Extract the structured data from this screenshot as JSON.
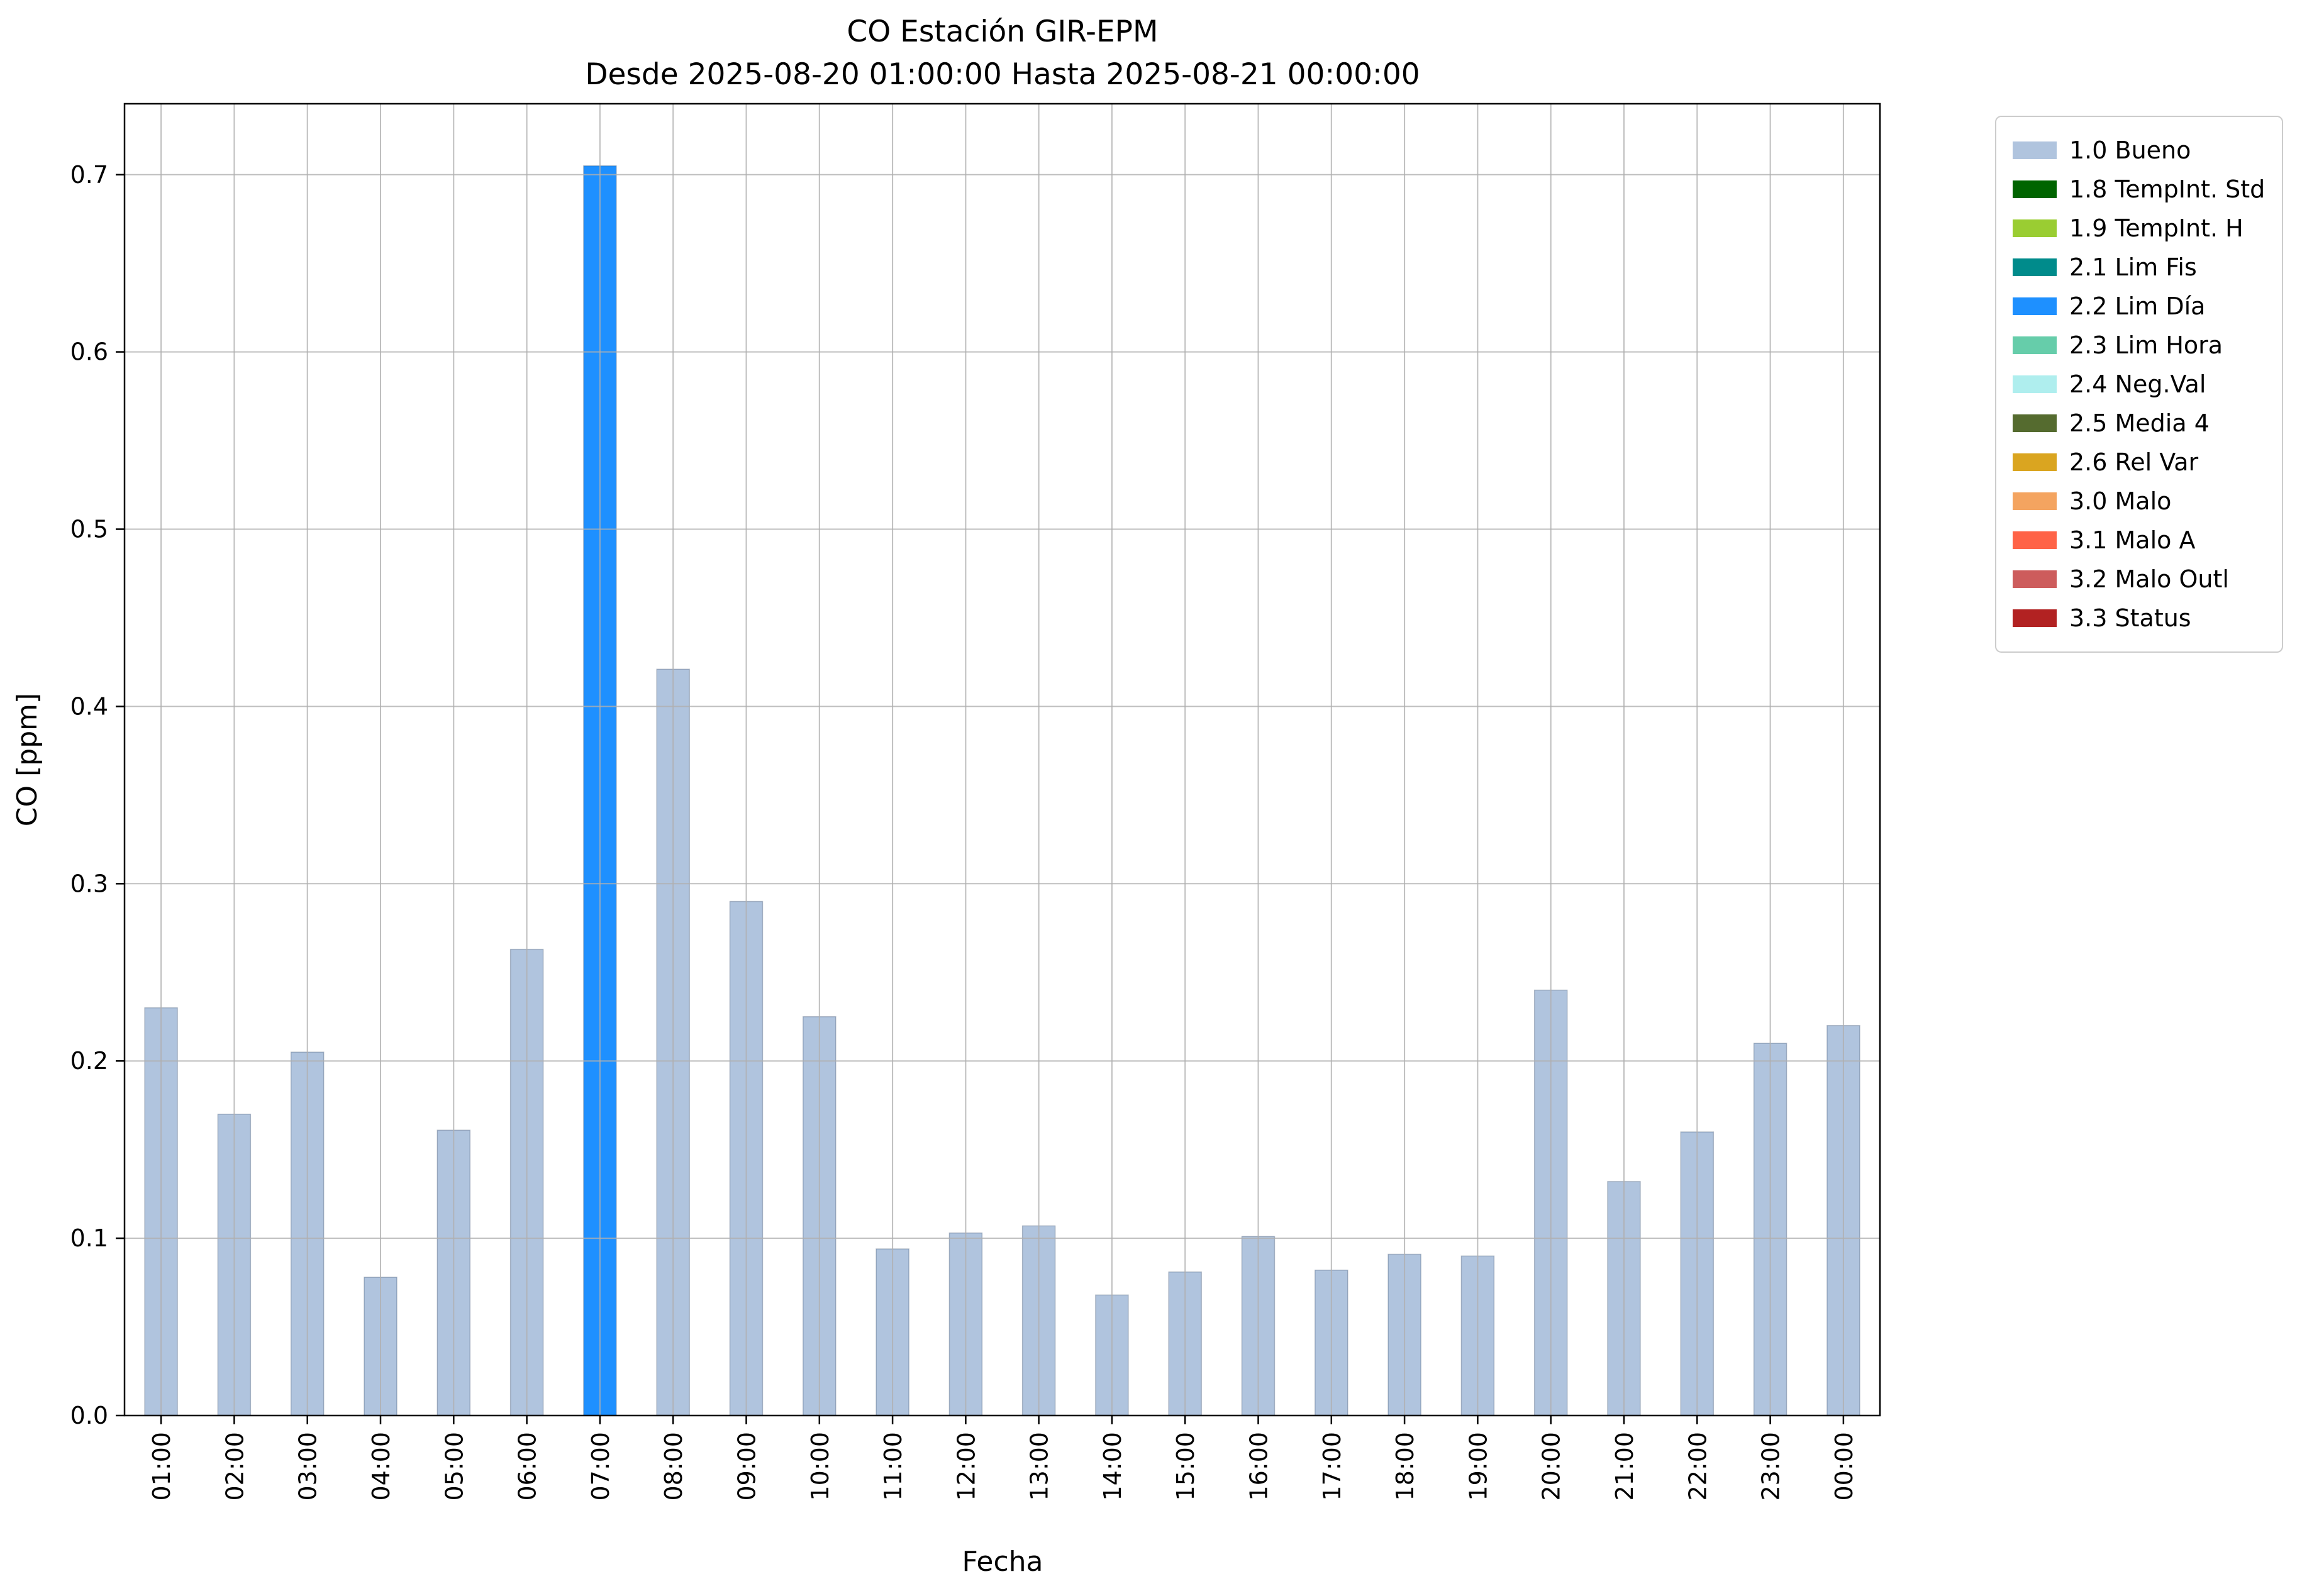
{
  "chart": {
    "title": "CO Estación GIR-EPM",
    "subtitle": "Desde 2025-08-20 01:00:00 Hasta 2025-08-21 00:00:00",
    "xlabel": "Fecha",
    "ylabel": "CO [ppm]"
  },
  "chart_data": {
    "type": "bar",
    "title": "CO Estación GIR-EPM",
    "subtitle": "Desde 2025-08-20 01:00:00 Hasta 2025-08-21 00:00:00",
    "xlabel": "Fecha",
    "ylabel": "CO [ppm]",
    "ylim": [
      0,
      0.74
    ],
    "yticks": [
      0.0,
      0.1,
      0.2,
      0.3,
      0.4,
      0.5,
      0.6,
      0.7
    ],
    "grid": true,
    "legend_position": "outside-right-top",
    "categories": [
      "01:00",
      "02:00",
      "03:00",
      "04:00",
      "05:00",
      "06:00",
      "07:00",
      "08:00",
      "09:00",
      "10:00",
      "11:00",
      "12:00",
      "13:00",
      "14:00",
      "15:00",
      "16:00",
      "17:00",
      "18:00",
      "19:00",
      "20:00",
      "21:00",
      "22:00",
      "23:00",
      "00:00"
    ],
    "values": [
      0.23,
      0.17,
      0.205,
      0.078,
      0.161,
      0.263,
      0.705,
      0.421,
      0.29,
      0.225,
      0.094,
      0.103,
      0.107,
      0.068,
      0.081,
      0.101,
      0.082,
      0.091,
      0.09,
      0.24,
      0.132,
      0.16,
      0.21,
      0.22
    ],
    "flags": [
      "1.0 Bueno",
      "1.0 Bueno",
      "1.0 Bueno",
      "1.0 Bueno",
      "1.0 Bueno",
      "1.0 Bueno",
      "2.2 Lim Día",
      "1.0 Bueno",
      "1.0 Bueno",
      "1.0 Bueno",
      "1.0 Bueno",
      "1.0 Bueno",
      "1.0 Bueno",
      "1.0 Bueno",
      "1.0 Bueno",
      "1.0 Bueno",
      "1.0 Bueno",
      "1.0 Bueno",
      "1.0 Bueno",
      "1.0 Bueno",
      "1.0 Bueno",
      "1.0 Bueno",
      "1.0 Bueno",
      "1.0 Bueno"
    ],
    "legend": [
      {
        "label": "1.0 Bueno",
        "color": "#b0c4de"
      },
      {
        "label": "1.8 TempInt. Std",
        "color": "#006400"
      },
      {
        "label": "1.9 TempInt. H",
        "color": "#9acd32"
      },
      {
        "label": "2.1 Lim Fis",
        "color": "#008b8b"
      },
      {
        "label": "2.2 Lim Día",
        "color": "#1e90ff"
      },
      {
        "label": "2.3 Lim Hora",
        "color": "#66cdaa"
      },
      {
        "label": "2.4 Neg.Val",
        "color": "#afeeee"
      },
      {
        "label": "2.5 Media 4",
        "color": "#556b2f"
      },
      {
        "label": "2.6 Rel Var",
        "color": "#daa520"
      },
      {
        "label": "3.0 Malo",
        "color": "#f4a460"
      },
      {
        "label": "3.1 Malo A",
        "color": "#ff6347"
      },
      {
        "label": "3.2 Malo Outl",
        "color": "#cd5c5c"
      },
      {
        "label": "3.3 Status",
        "color": "#b22222"
      }
    ],
    "colors": {
      "grid": "#b0b0b0",
      "spine": "#000000",
      "background": "#ffffff"
    }
  }
}
